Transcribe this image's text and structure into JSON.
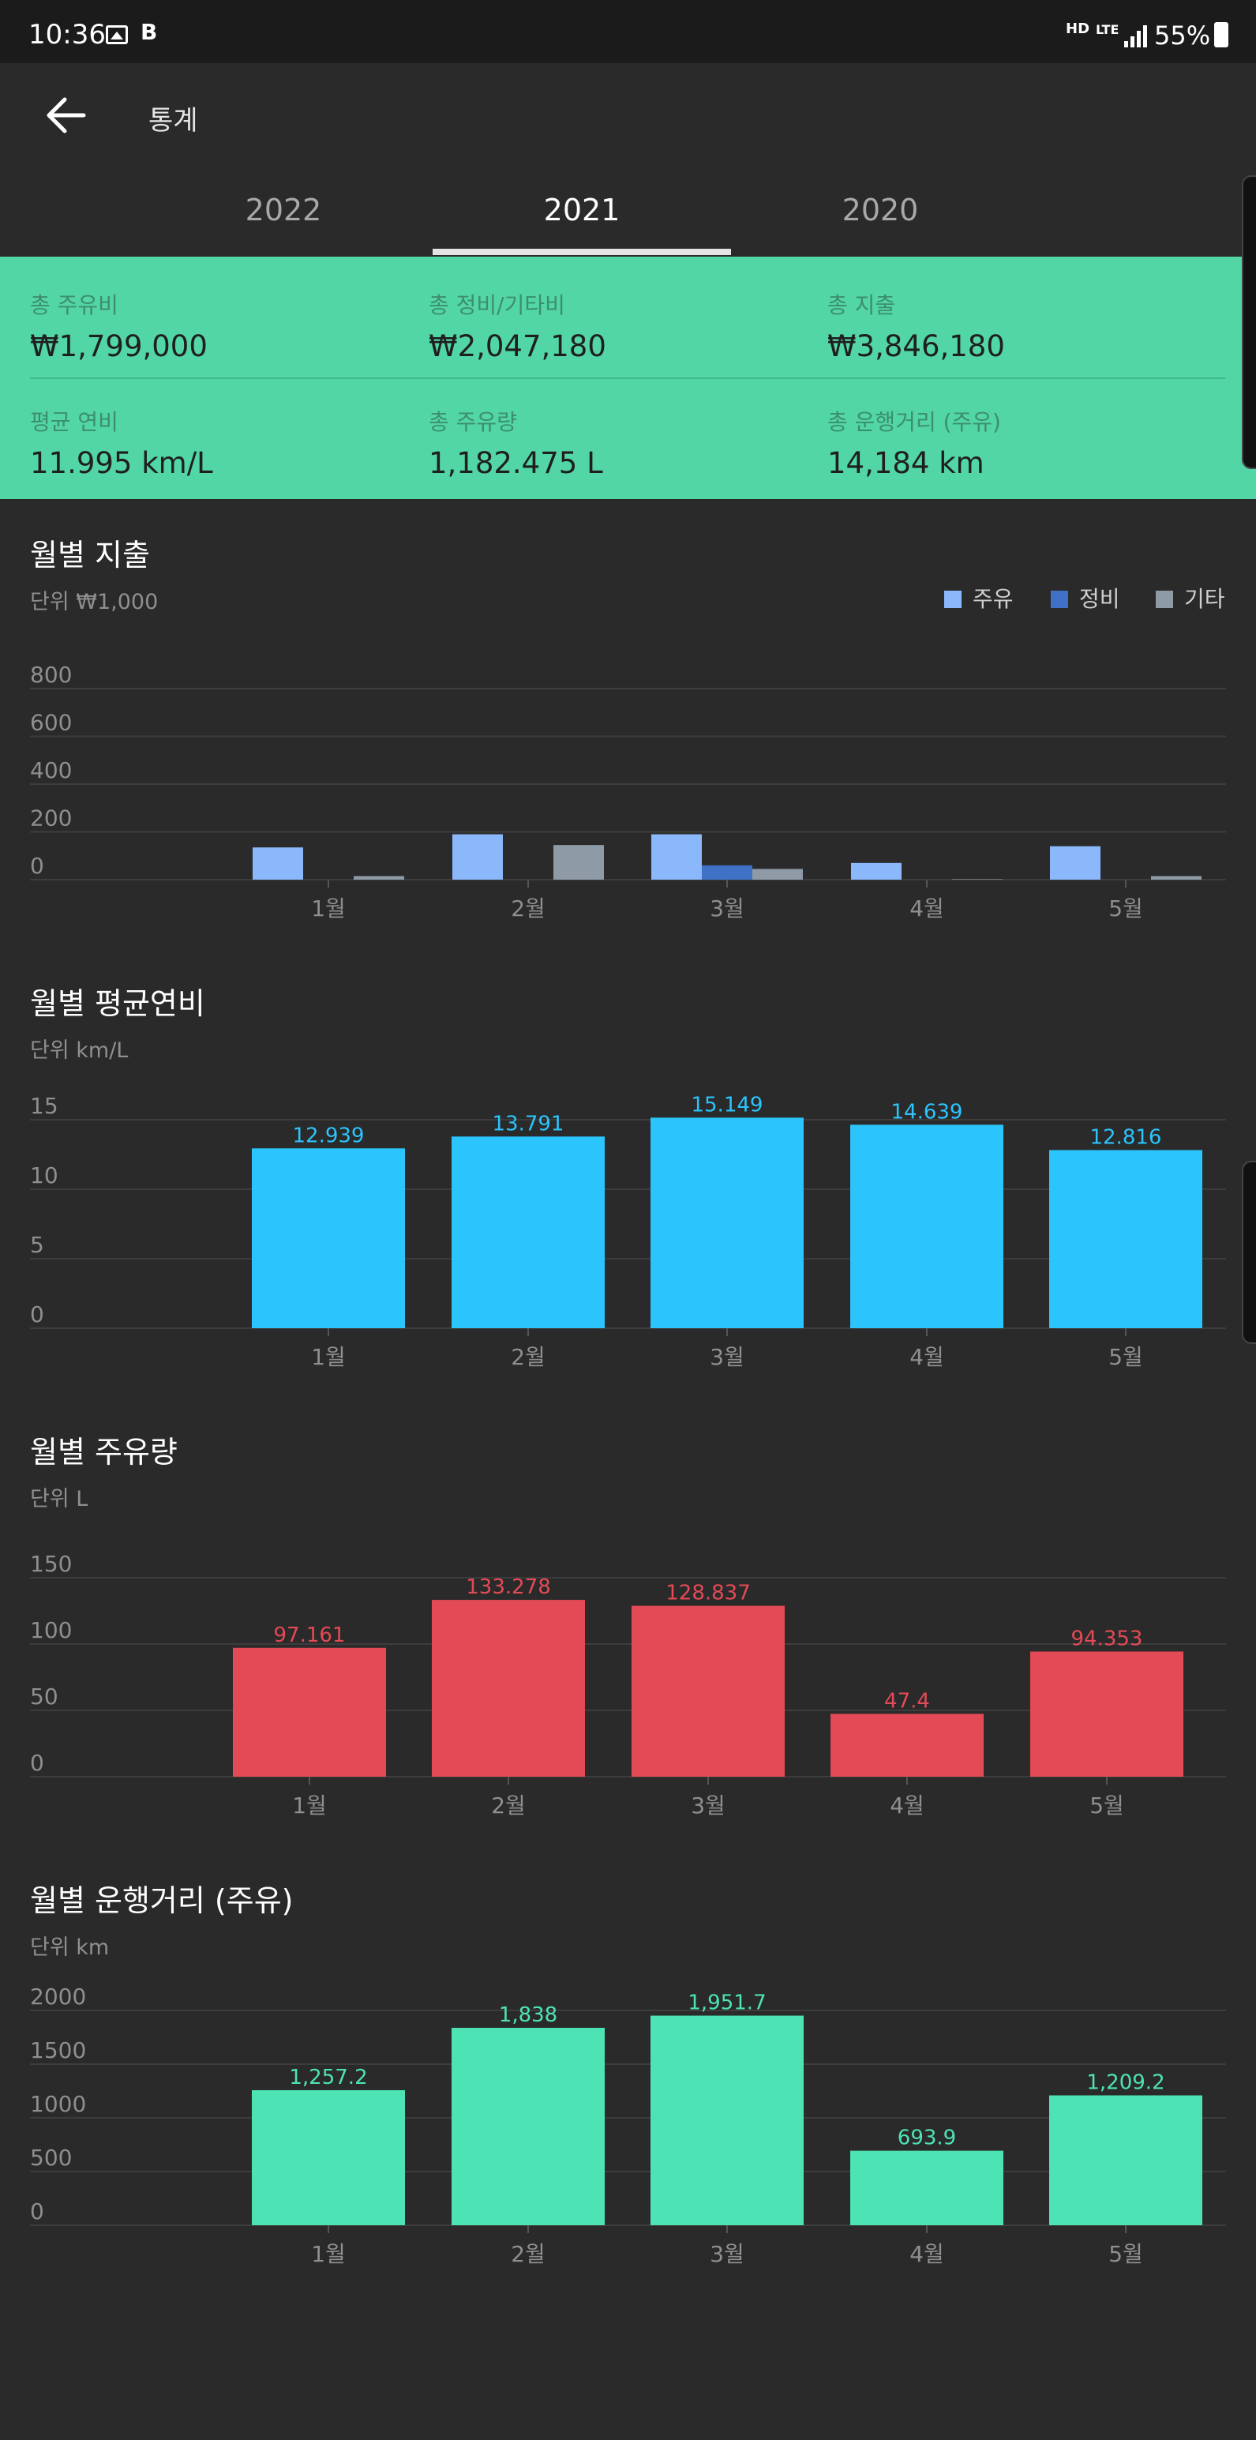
{
  "status_bar": {
    "time": "10:36",
    "hd_label": "HD",
    "lte_label": "LTE",
    "battery": "55%"
  },
  "toolbar": {
    "title": "통계",
    "back_icon": "arrow-left-icon"
  },
  "tabs": [
    {
      "label": "2022",
      "active": false
    },
    {
      "label": "2021",
      "active": true
    },
    {
      "label": "2020",
      "active": false
    }
  ],
  "summary": {
    "fuel_cost": {
      "label": "총 주유비",
      "value": "₩1,799,000"
    },
    "maintenance_cost": {
      "label": "총 정비/기타비",
      "value": "₩2,047,180"
    },
    "total_expense": {
      "label": "총 지출",
      "value": "₩3,846,180"
    },
    "avg_efficiency": {
      "label": "평균 연비",
      "value": "11.995 km/L"
    },
    "total_fuel": {
      "label": "총 주유량",
      "value": "1,182.475 L"
    },
    "total_distance": {
      "label": "총 운행거리 (주유)",
      "value": "14,184 km"
    }
  },
  "colors": {
    "summary_bg": "#52d6a6",
    "fuel": "#8ab8fb",
    "maintenance": "#3f72c6",
    "other": "#8e9aa6",
    "efficiency": "#2bc4fc",
    "fuel_amount": "#e44a56",
    "distance": "#4de3b5"
  },
  "sections": {
    "monthly_expense": {
      "title": "월별 지출",
      "unit": "단위 ₩1,000"
    },
    "monthly_efficiency": {
      "title": "월별 평균연비",
      "unit": "단위 km/L"
    },
    "monthly_fuel": {
      "title": "월별 주유량",
      "unit": "단위 L"
    },
    "monthly_distance": {
      "title": "월별 운행거리 (주유)",
      "unit": "단위 km"
    }
  },
  "chart_data": [
    {
      "type": "bar",
      "categories": [
        "1월",
        "2월",
        "3월",
        "4월",
        "5월"
      ],
      "series": [
        {
          "name": "주유",
          "values": [
            135,
            190,
            190,
            70,
            140
          ]
        },
        {
          "name": "정비",
          "values": [
            0,
            0,
            60,
            0,
            0
          ]
        },
        {
          "name": "기타",
          "values": [
            15,
            145,
            45,
            2,
            15
          ]
        }
      ],
      "yticks": [
        0,
        200,
        400,
        600,
        800
      ],
      "ylim": [
        0,
        800
      ],
      "legend": "top-right",
      "grid": true
    },
    {
      "type": "bar",
      "categories": [
        "1월",
        "2월",
        "3월",
        "4월",
        "5월"
      ],
      "values": [
        12.939,
        13.791,
        15.149,
        14.639,
        12.816
      ],
      "value_labels": [
        "12.939",
        "13.791",
        "15.149",
        "14.639",
        "12.816"
      ],
      "yticks": [
        0,
        5,
        10,
        15
      ],
      "ylim": [
        0,
        15
      ],
      "grid": true
    },
    {
      "type": "bar",
      "categories": [
        "1월",
        "2월",
        "3월",
        "4월",
        "5월"
      ],
      "values": [
        97.161,
        133.278,
        128.837,
        47.4,
        94.353
      ],
      "value_labels": [
        "97.161",
        "133.278",
        "128.837",
        "47.4",
        "94.353"
      ],
      "yticks": [
        0,
        50,
        100,
        150
      ],
      "ylim": [
        0,
        150
      ],
      "grid": true
    },
    {
      "type": "bar",
      "categories": [
        "1월",
        "2월",
        "3월",
        "4월",
        "5월"
      ],
      "values": [
        1257.2,
        1838,
        1951.7,
        693.9,
        1209.2
      ],
      "value_labels": [
        "1,257.2",
        "1,838",
        "1,951.7",
        "693.9",
        "1,209.2"
      ],
      "yticks": [
        0,
        500,
        1000,
        1500,
        2000
      ],
      "ylim": [
        0,
        2000
      ],
      "grid": true
    }
  ]
}
